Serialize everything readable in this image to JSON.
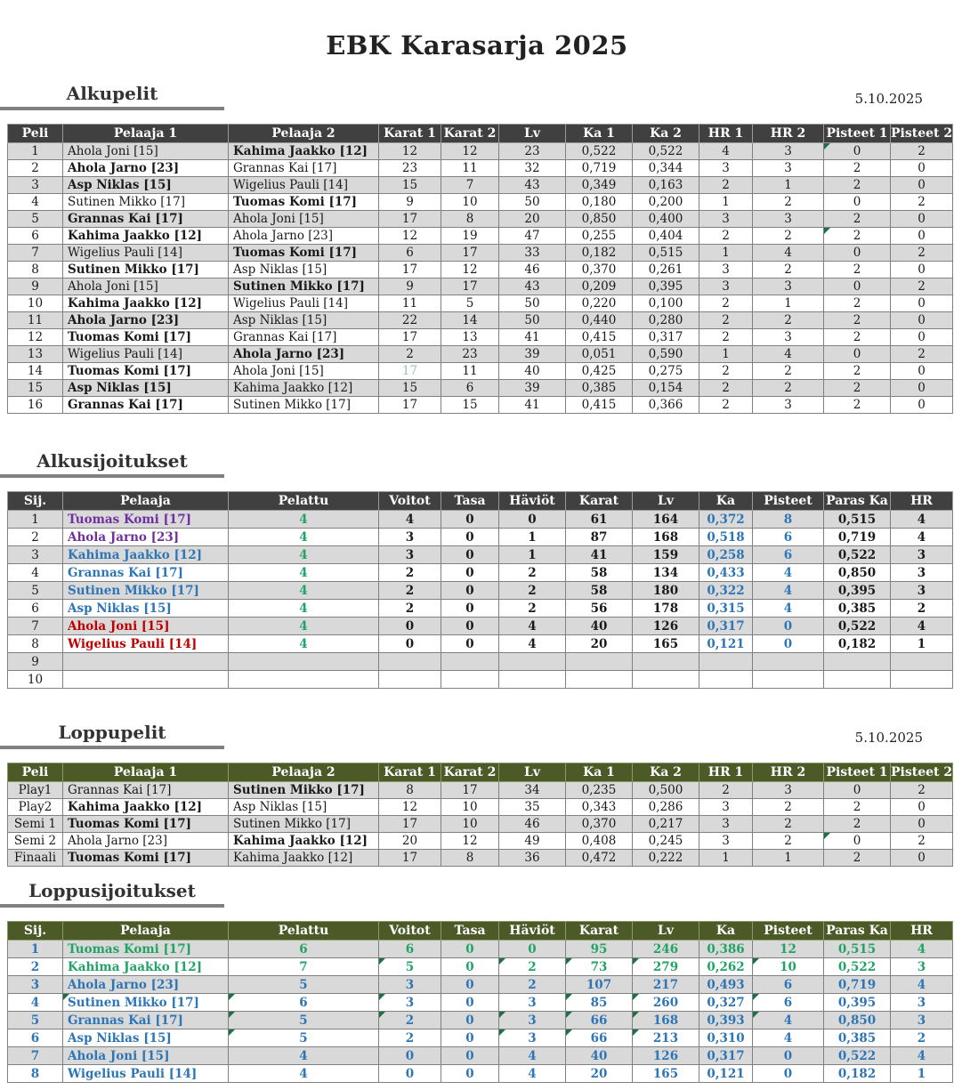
{
  "title": "EBK Karasarja 2025",
  "colors": {
    "header_dark": "#404040",
    "header_olive": "#4C5A28",
    "row_stripe": "#D9D9D9",
    "name_purple": "#7030A0",
    "name_blue": "#2E75B6",
    "name_red": "#C00000",
    "value_green": "#21A366",
    "muted_teal": "#9FB9BE",
    "comment_triangle_green": "#1E7145"
  },
  "sections": {
    "alkupelit": {
      "heading": "Alkupelit",
      "date": "5.10.2025"
    },
    "alkusijoitukset": {
      "heading": "Alkusijoitukset"
    },
    "loppupelit": {
      "heading": "Loppupelit",
      "date": "5.10.2025"
    },
    "loppusijoitukset": {
      "heading": "Loppusijoitukset"
    }
  },
  "games_headers": [
    "Peli",
    "Pelaaja 1",
    "Pelaaja 2",
    "Karat 1",
    "Karat 2",
    "Lv",
    "Ka 1",
    "Ka 2",
    "HR 1",
    "HR 2",
    "Pisteet 1",
    "Pisteet 2"
  ],
  "standings_headers": [
    "Sij.",
    "Pelaaja",
    "Pelattu",
    "Voitot",
    "Tasa",
    "Häviöt",
    "Karat",
    "Lv",
    "Ka",
    "Pisteet",
    "Paras Ka",
    "HR"
  ],
  "alkupelit_rows": [
    {
      "peli": "1",
      "p1": "Ahola Joni [15]",
      "p2": "Kahima Jaakko [12]",
      "winner": 2,
      "vals": [
        "12",
        "12",
        "23",
        "0,522",
        "0,522",
        "4",
        "3",
        "0",
        "2"
      ],
      "tri": [
        7
      ]
    },
    {
      "peli": "2",
      "p1": "Ahola Jarno [23]",
      "p2": "Grannas Kai [17]",
      "winner": 1,
      "vals": [
        "23",
        "11",
        "32",
        "0,719",
        "0,344",
        "3",
        "3",
        "2",
        "0"
      ]
    },
    {
      "peli": "3",
      "p1": "Asp Niklas [15]",
      "p2": "Wigelius Pauli [14]",
      "winner": 1,
      "vals": [
        "15",
        "7",
        "43",
        "0,349",
        "0,163",
        "2",
        "1",
        "2",
        "0"
      ]
    },
    {
      "peli": "4",
      "p1": "Sutinen Mikko [17]",
      "p2": "Tuomas Komi [17]",
      "winner": 2,
      "vals": [
        "9",
        "10",
        "50",
        "0,180",
        "0,200",
        "1",
        "2",
        "0",
        "2"
      ]
    },
    {
      "peli": "5",
      "p1": "Grannas Kai [17]",
      "p2": "Ahola Joni [15]",
      "winner": 1,
      "vals": [
        "17",
        "8",
        "20",
        "0,850",
        "0,400",
        "3",
        "3",
        "2",
        "0"
      ]
    },
    {
      "peli": "6",
      "p1": "Kahima Jaakko [12]",
      "p2": "Ahola Jarno [23]",
      "winner": 1,
      "vals": [
        "12",
        "19",
        "47",
        "0,255",
        "0,404",
        "2",
        "2",
        "2",
        "0"
      ],
      "tri": [
        7
      ]
    },
    {
      "peli": "7",
      "p1": "Wigelius Pauli [14]",
      "p2": "Tuomas Komi [17]",
      "winner": 2,
      "vals": [
        "6",
        "17",
        "33",
        "0,182",
        "0,515",
        "1",
        "4",
        "0",
        "2"
      ]
    },
    {
      "peli": "8",
      "p1": "Sutinen Mikko [17]",
      "p2": "Asp Niklas [15]",
      "winner": 1,
      "vals": [
        "17",
        "12",
        "46",
        "0,370",
        "0,261",
        "3",
        "2",
        "2",
        "0"
      ]
    },
    {
      "peli": "9",
      "p1": "Ahola Joni [15]",
      "p2": "Sutinen Mikko [17]",
      "winner": 2,
      "vals": [
        "9",
        "17",
        "43",
        "0,209",
        "0,395",
        "3",
        "3",
        "0",
        "2"
      ]
    },
    {
      "peli": "10",
      "p1": "Kahima Jaakko [12]",
      "p2": "Wigelius Pauli [14]",
      "winner": 1,
      "vals": [
        "11",
        "5",
        "50",
        "0,220",
        "0,100",
        "2",
        "1",
        "2",
        "0"
      ]
    },
    {
      "peli": "11",
      "p1": "Ahola Jarno [23]",
      "p2": "Asp Niklas [15]",
      "winner": 1,
      "vals": [
        "22",
        "14",
        "50",
        "0,440",
        "0,280",
        "2",
        "2",
        "2",
        "0"
      ]
    },
    {
      "peli": "12",
      "p1": "Tuomas Komi [17]",
      "p2": "Grannas Kai [17]",
      "winner": 1,
      "vals": [
        "17",
        "13",
        "41",
        "0,415",
        "0,317",
        "2",
        "3",
        "2",
        "0"
      ]
    },
    {
      "peli": "13",
      "p1": "Wigelius Pauli [14]",
      "p2": "Ahola Jarno [23]",
      "winner": 2,
      "vals": [
        "2",
        "23",
        "39",
        "0,051",
        "0,590",
        "1",
        "4",
        "0",
        "2"
      ]
    },
    {
      "peli": "14",
      "p1": "Tuomas Komi [17]",
      "p2": "Ahola Joni [15]",
      "winner": 1,
      "vals": [
        "17",
        "11",
        "40",
        "0,425",
        "0,275",
        "2",
        "2",
        "2",
        "0"
      ],
      "muted": [
        0
      ]
    },
    {
      "peli": "15",
      "p1": "Asp Niklas [15]",
      "p2": "Kahima Jaakko [12]",
      "winner": 1,
      "vals": [
        "15",
        "6",
        "39",
        "0,385",
        "0,154",
        "2",
        "2",
        "2",
        "0"
      ]
    },
    {
      "peli": "16",
      "p1": "Grannas Kai [17]",
      "p2": "Sutinen Mikko [17]",
      "winner": 1,
      "vals": [
        "17",
        "15",
        "41",
        "0,415",
        "0,366",
        "2",
        "3",
        "2",
        "0"
      ]
    }
  ],
  "alkusijoitukset_rows": [
    {
      "sij": "1",
      "name": "Tuomas Komi [17]",
      "name_color": "purple",
      "vals": [
        "4",
        "4",
        "0",
        "0",
        "61",
        "164",
        "0,372",
        "8",
        "0,515",
        "4"
      ]
    },
    {
      "sij": "2",
      "name": "Ahola Jarno [23]",
      "name_color": "purple",
      "vals": [
        "4",
        "3",
        "0",
        "1",
        "87",
        "168",
        "0,518",
        "6",
        "0,719",
        "4"
      ]
    },
    {
      "sij": "3",
      "name": "Kahima Jaakko [12]",
      "name_color": "blue",
      "vals": [
        "4",
        "3",
        "0",
        "1",
        "41",
        "159",
        "0,258",
        "6",
        "0,522",
        "3"
      ]
    },
    {
      "sij": "4",
      "name": "Grannas Kai [17]",
      "name_color": "blue",
      "vals": [
        "4",
        "2",
        "0",
        "2",
        "58",
        "134",
        "0,433",
        "4",
        "0,850",
        "3"
      ]
    },
    {
      "sij": "5",
      "name": "Sutinen Mikko [17]",
      "name_color": "blue",
      "vals": [
        "4",
        "2",
        "0",
        "2",
        "58",
        "180",
        "0,322",
        "4",
        "0,395",
        "3"
      ]
    },
    {
      "sij": "6",
      "name": "Asp Niklas [15]",
      "name_color": "blue",
      "vals": [
        "4",
        "2",
        "0",
        "2",
        "56",
        "178",
        "0,315",
        "4",
        "0,385",
        "2"
      ]
    },
    {
      "sij": "7",
      "name": "Ahola Joni [15]",
      "name_color": "red",
      "vals": [
        "4",
        "0",
        "0",
        "4",
        "40",
        "126",
        "0,317",
        "0",
        "0,522",
        "4"
      ]
    },
    {
      "sij": "8",
      "name": "Wigelius Pauli [14]",
      "name_color": "red",
      "vals": [
        "4",
        "0",
        "0",
        "4",
        "20",
        "165",
        "0,121",
        "0",
        "0,182",
        "1"
      ]
    },
    {
      "sij": "9"
    },
    {
      "sij": "10"
    }
  ],
  "alkusijoitukset_value_colors": {
    "0": "green",
    "6": "blue",
    "7": "blue"
  },
  "loppupelit_rows": [
    {
      "peli": "Play1",
      "p1": "Grannas Kai [17]",
      "p2": "Sutinen Mikko [17]",
      "winner": 2,
      "vals": [
        "8",
        "17",
        "34",
        "0,235",
        "0,500",
        "2",
        "3",
        "0",
        "2"
      ]
    },
    {
      "peli": "Play2",
      "p1": "Kahima Jaakko [12]",
      "p2": "Asp Niklas [15]",
      "winner": 1,
      "vals": [
        "12",
        "10",
        "35",
        "0,343",
        "0,286",
        "3",
        "2",
        "2",
        "0"
      ]
    },
    {
      "peli": "Semi 1",
      "p1": "Tuomas Komi [17]",
      "p2": "Sutinen Mikko [17]",
      "winner": 1,
      "vals": [
        "17",
        "10",
        "46",
        "0,370",
        "0,217",
        "3",
        "2",
        "2",
        "0"
      ]
    },
    {
      "peli": "Semi 2",
      "p1": "Ahola Jarno [23]",
      "p2": "Kahima Jaakko [12]",
      "winner": 2,
      "vals": [
        "20",
        "12",
        "49",
        "0,408",
        "0,245",
        "3",
        "2",
        "0",
        "2"
      ],
      "tri": [
        7
      ]
    },
    {
      "peli": "Finaali",
      "p1": "Tuomas Komi [17]",
      "p2": "Kahima Jaakko [12]",
      "winner": 1,
      "vals": [
        "17",
        "8",
        "36",
        "0,472",
        "0,222",
        "1",
        "1",
        "2",
        "0"
      ]
    }
  ],
  "loppusijoitukset_rows": [
    {
      "sij": "1",
      "name": "Tuomas Komi [17]",
      "row_color": "green",
      "vals": [
        "6",
        "6",
        "0",
        "0",
        "95",
        "246",
        "0,386",
        "12",
        "0,515",
        "4"
      ]
    },
    {
      "sij": "2",
      "name": "Kahima Jaakko [12]",
      "row_color": "green",
      "vals": [
        "7",
        "5",
        "0",
        "2",
        "73",
        "279",
        "0,262",
        "10",
        "0,522",
        "3"
      ],
      "tri": [
        1,
        3,
        4,
        5,
        7
      ]
    },
    {
      "sij": "3",
      "name": "Ahola Jarno [23]",
      "row_color": "blue",
      "vals": [
        "5",
        "3",
        "0",
        "2",
        "107",
        "217",
        "0,493",
        "6",
        "0,719",
        "4"
      ]
    },
    {
      "sij": "4",
      "name": "Sutinen Mikko [17]",
      "row_color": "blue",
      "name_tri": true,
      "vals": [
        "6",
        "3",
        "0",
        "3",
        "85",
        "260",
        "0,327",
        "6",
        "0,395",
        "3"
      ],
      "tri": [
        0,
        1,
        4,
        5,
        7
      ]
    },
    {
      "sij": "5",
      "name": "Grannas Kai [17]",
      "row_color": "blue",
      "vals": [
        "5",
        "2",
        "0",
        "3",
        "66",
        "168",
        "0,393",
        "4",
        "0,850",
        "3"
      ],
      "tri": [
        0,
        1,
        3,
        4,
        5,
        7
      ]
    },
    {
      "sij": "6",
      "name": "Asp Niklas [15]",
      "row_color": "blue",
      "vals": [
        "5",
        "2",
        "0",
        "3",
        "66",
        "213",
        "0,310",
        "4",
        "0,385",
        "2"
      ],
      "tri": [
        0,
        3,
        4,
        5
      ]
    },
    {
      "sij": "7",
      "name": "Ahola Joni [15]",
      "row_color": "blue",
      "vals": [
        "4",
        "0",
        "0",
        "4",
        "40",
        "126",
        "0,317",
        "0",
        "0,522",
        "4"
      ]
    },
    {
      "sij": "8",
      "name": "Wigelius Pauli [14]",
      "row_color": "blue",
      "vals": [
        "4",
        "0",
        "0",
        "4",
        "20",
        "165",
        "0,121",
        "0",
        "0,182",
        "1"
      ]
    }
  ]
}
